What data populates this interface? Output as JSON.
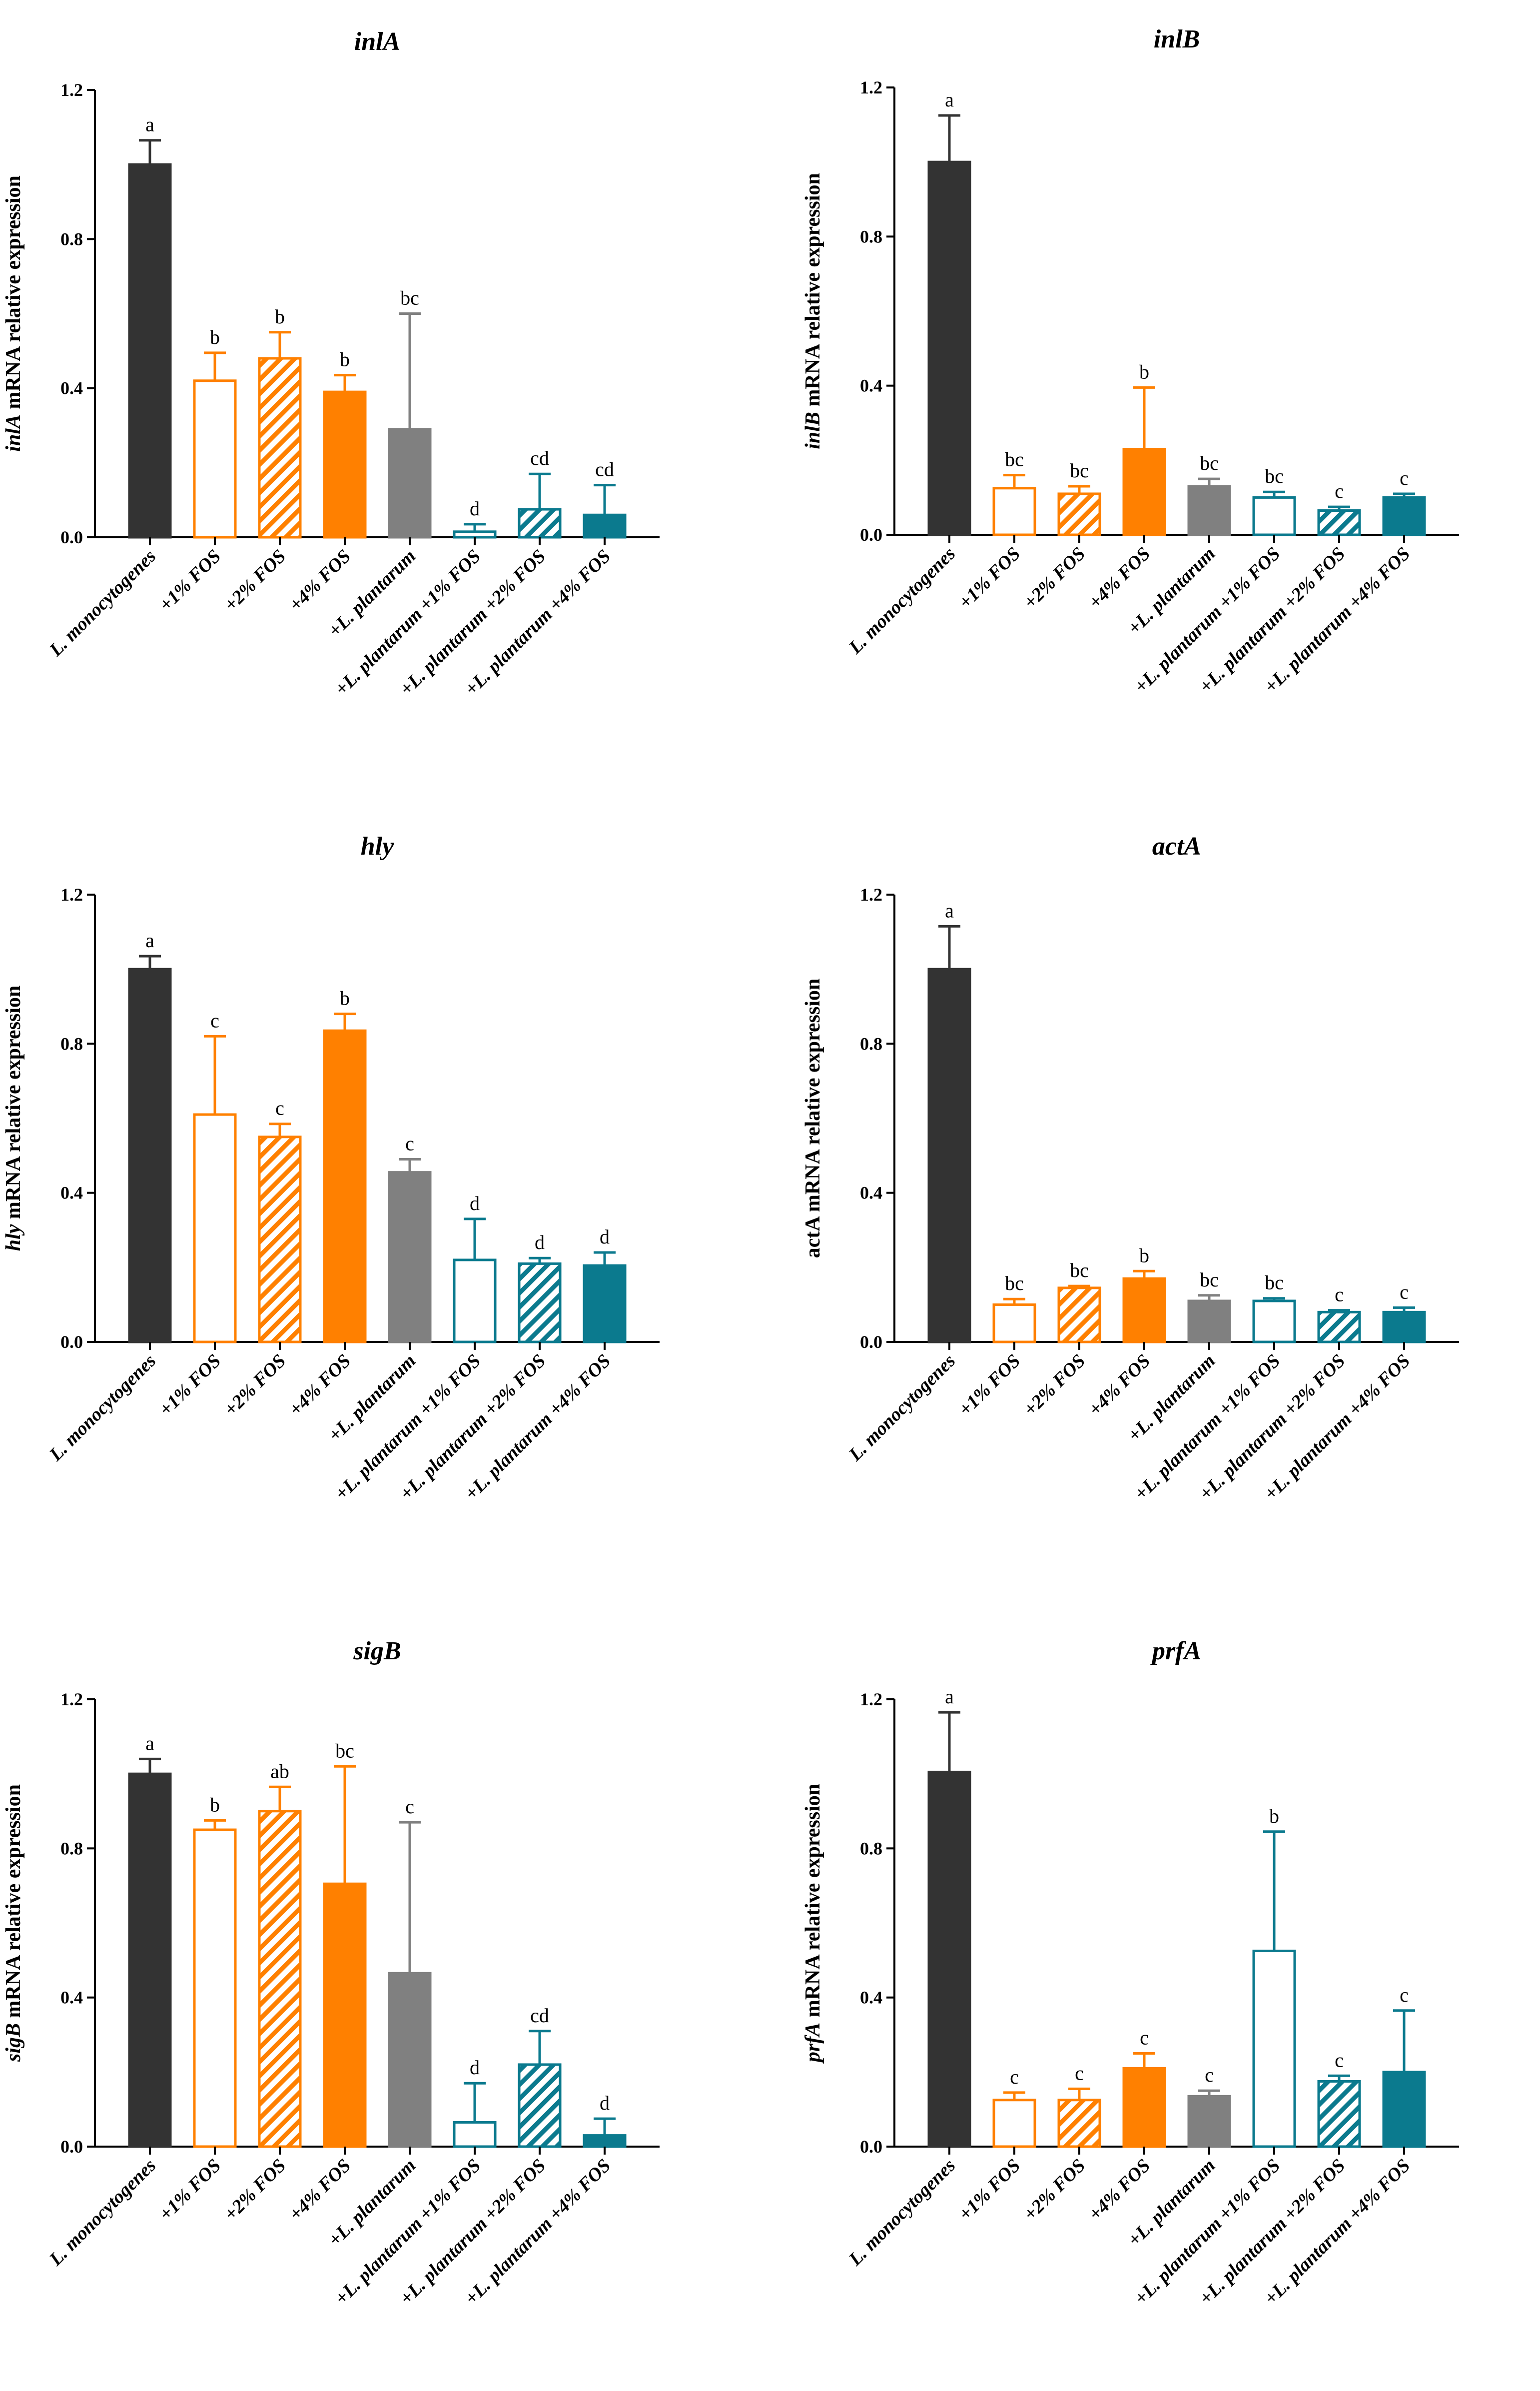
{
  "colors": {
    "lm": "#333333",
    "fos": "#ff8000",
    "lp": "#808080",
    "lpfos": "#0b7a8e"
  },
  "chart_data": [
    {
      "type": "bar",
      "title": "inlA",
      "ylabel": {
        "gene": "inlA",
        "text": " mRNA relative expression",
        "gene_italic": true
      },
      "ylim": [
        0,
        1.2
      ],
      "yticks": [
        "0.0",
        "0.4",
        "0.8",
        "1.2"
      ],
      "categories": [
        "L. monocytogenes",
        "+1% FOS",
        "+2% FOS",
        "+4% FOS",
        "+L. plantarum",
        "+L. plantarum +1% FOS",
        "+L. plantarum +2% FOS",
        "+L. plantarum +4% FOS"
      ],
      "values": [
        1.0,
        0.42,
        0.48,
        0.39,
        0.29,
        0.015,
        0.075,
        0.06
      ],
      "errors": [
        0.065,
        0.075,
        0.07,
        0.045,
        0.31,
        0.02,
        0.095,
        0.08
      ],
      "labels": [
        "a",
        "b",
        "b",
        "b",
        "bc",
        "d",
        "cd",
        "cd"
      ]
    },
    {
      "type": "bar",
      "title": "inlB",
      "ylabel": {
        "gene": "inlB",
        "text": " mRNA relative expression",
        "gene_italic": true
      },
      "ylim": [
        0,
        1.2
      ],
      "yticks": [
        "0.0",
        "0.4",
        "0.8",
        "1.2"
      ],
      "categories": [
        "L. monocytogenes",
        "+1% FOS",
        "+2% FOS",
        "+4% FOS",
        "+L. plantarum",
        "+L. plantarum +1% FOS",
        "+L. plantarum +2% FOS",
        "+L. plantarum +4% FOS"
      ],
      "values": [
        1.0,
        0.125,
        0.11,
        0.23,
        0.13,
        0.1,
        0.065,
        0.1
      ],
      "errors": [
        0.125,
        0.035,
        0.02,
        0.165,
        0.02,
        0.015,
        0.01,
        0.01
      ],
      "labels": [
        "a",
        "bc",
        "bc",
        "b",
        "bc",
        "bc",
        "c",
        "c"
      ]
    },
    {
      "type": "bar",
      "title": "hly",
      "ylabel": {
        "gene": "hly",
        "text": " mRNA relative expression",
        "gene_italic": true
      },
      "ylim": [
        0,
        1.2
      ],
      "yticks": [
        "0.0",
        "0.4",
        "0.8",
        "1.2"
      ],
      "categories": [
        "L. monocytogenes",
        "+1% FOS",
        "+2% FOS",
        "+4% FOS",
        "+L. plantarum",
        "+L. plantarum +1% FOS",
        "+L. plantarum +2% FOS",
        "+L. plantarum +4% FOS"
      ],
      "values": [
        1.0,
        0.61,
        0.55,
        0.835,
        0.455,
        0.22,
        0.21,
        0.205
      ],
      "errors": [
        0.035,
        0.21,
        0.035,
        0.045,
        0.035,
        0.11,
        0.015,
        0.035
      ],
      "labels": [
        "a",
        "c",
        "c",
        "b",
        "c",
        "d",
        "d",
        "d"
      ]
    },
    {
      "type": "bar",
      "title": "actA",
      "ylabel": {
        "gene": "",
        "text": "actA mRNA relative expression",
        "gene_italic": false
      },
      "ylim": [
        0,
        1.2
      ],
      "yticks": [
        "0.0",
        "0.4",
        "0.8",
        "1.2"
      ],
      "categories": [
        "L. monocytogenes",
        "+1% FOS",
        "+2% FOS",
        "+4% FOS",
        "+L. plantarum",
        "+L. plantarum +1% FOS",
        "+L. plantarum +2% FOS",
        "+L. plantarum +4% FOS"
      ],
      "values": [
        1.0,
        0.1,
        0.145,
        0.17,
        0.11,
        0.11,
        0.08,
        0.08
      ],
      "errors": [
        0.115,
        0.015,
        0.005,
        0.02,
        0.015,
        0.007,
        0.005,
        0.012
      ],
      "labels": [
        "a",
        "bc",
        "bc",
        "b",
        "bc",
        "bc",
        "c",
        "c"
      ]
    },
    {
      "type": "bar",
      "title": "sigB",
      "ylabel": {
        "gene": "sigB",
        "text": " mRNA relative expression",
        "gene_italic": true
      },
      "ylim": [
        0,
        1.2
      ],
      "yticks": [
        "0.0",
        "0.4",
        "0.8",
        "1.2"
      ],
      "categories": [
        "L. monocytogenes",
        "+1% FOS",
        "+2% FOS",
        "+4% FOS",
        "+L. plantarum",
        "+L. plantarum +1% FOS",
        "+L. plantarum +2% FOS",
        "+L. plantarum +4% FOS"
      ],
      "values": [
        1.0,
        0.85,
        0.9,
        0.705,
        0.465,
        0.065,
        0.22,
        0.03
      ],
      "errors": [
        0.04,
        0.025,
        0.065,
        0.315,
        0.405,
        0.105,
        0.09,
        0.045
      ],
      "labels": [
        "a",
        "b",
        "ab",
        "bc",
        "c",
        "d",
        "cd",
        "d"
      ]
    },
    {
      "type": "bar",
      "title": "prfA",
      "ylabel": {
        "gene": "prfA",
        "text": " mRNA relative expression",
        "gene_italic": true
      },
      "ylim": [
        0,
        1.2
      ],
      "yticks": [
        "0.0",
        "0.4",
        "0.8",
        "1.2"
      ],
      "categories": [
        "L. monocytogenes",
        "+1% FOS",
        "+2% FOS",
        "+4% FOS",
        "+L. plantarum",
        "+L. plantarum +1% FOS",
        "+L. plantarum +2% FOS",
        "+L. plantarum +4% FOS"
      ],
      "values": [
        1.005,
        0.125,
        0.125,
        0.21,
        0.135,
        0.525,
        0.175,
        0.2
      ],
      "errors": [
        0.16,
        0.02,
        0.03,
        0.04,
        0.015,
        0.32,
        0.015,
        0.165
      ],
      "labels": [
        "a",
        "c",
        "c",
        "c",
        "c",
        "b",
        "c",
        "c"
      ]
    }
  ]
}
